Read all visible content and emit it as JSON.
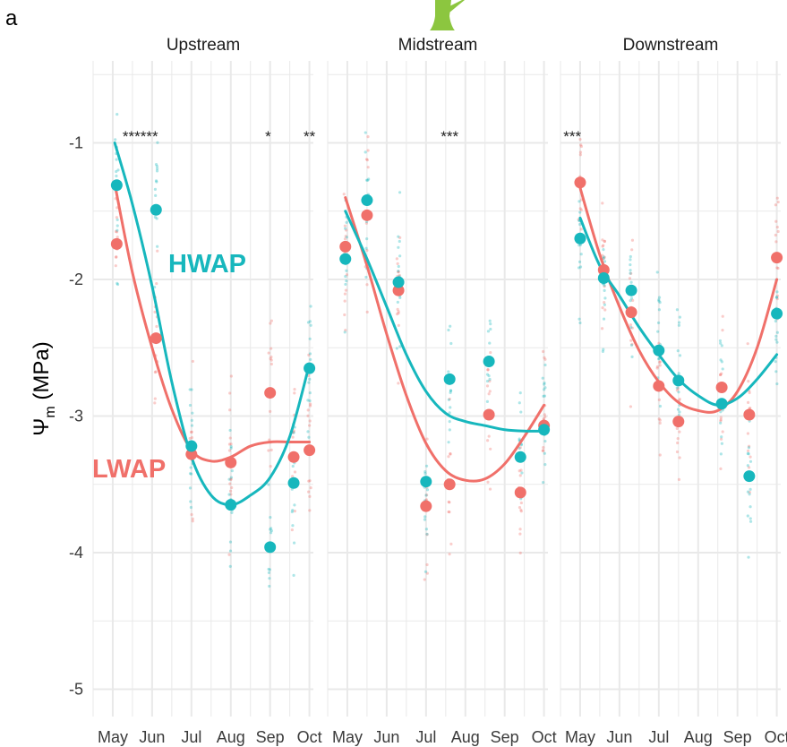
{
  "panel_label": "a",
  "y_axis_label": "Ψm (MPa)",
  "y_axis_label_main": "Ψ",
  "y_axis_label_sub": "m",
  "y_axis_label_unit": " (MPa)",
  "colors": {
    "HWAP": "#17b7bd",
    "LWAP": "#f0706a",
    "grid": "#e9e9e9",
    "text": "#3b3b3b",
    "icon": "#8cc63f"
  },
  "chart_data": {
    "type": "scatter",
    "ylim": [
      -5.2,
      -0.4
    ],
    "yticks": [
      -1,
      -2,
      -3,
      -4,
      -5
    ],
    "ytick_labels": [
      "-1",
      "-2",
      "-3",
      "-4",
      "-5"
    ],
    "xlim": [
      4.5,
      10.1
    ],
    "xticks": [
      5,
      6,
      7,
      8,
      9,
      10
    ],
    "xtick_labels": [
      "May",
      "Jun",
      "Jul",
      "Aug",
      "Sep",
      "Oct"
    ],
    "grid": true,
    "legend": "inline labels in Upstream panel",
    "series_labels": {
      "HWAP": "HWAP",
      "LWAP": "LWAP"
    },
    "panels": [
      {
        "title": "Upstream",
        "annotations": [
          {
            "x": 5.7,
            "text": "******"
          },
          {
            "x": 8.95,
            "text": "*"
          },
          {
            "x": 10.0,
            "text": "**"
          }
        ],
        "HWAP": {
          "means": [
            [
              5.1,
              -1.31
            ],
            [
              6.1,
              -1.49
            ],
            [
              7.0,
              -3.22
            ],
            [
              8.0,
              -3.65
            ],
            [
              9.0,
              -3.96
            ],
            [
              9.6,
              -3.49
            ],
            [
              10.0,
              -2.65
            ]
          ],
          "smooth": [
            [
              5.05,
              -1.0
            ],
            [
              5.5,
              -1.45
            ],
            [
              6.0,
              -2.05
            ],
            [
              6.5,
              -2.75
            ],
            [
              7.0,
              -3.3
            ],
            [
              7.5,
              -3.58
            ],
            [
              8.0,
              -3.65
            ],
            [
              8.5,
              -3.58
            ],
            [
              9.0,
              -3.45
            ],
            [
              9.5,
              -3.15
            ],
            [
              10.0,
              -2.62
            ]
          ]
        },
        "LWAP": {
          "means": [
            [
              5.1,
              -1.74
            ],
            [
              6.1,
              -2.43
            ],
            [
              7.0,
              -3.28
            ],
            [
              8.0,
              -3.34
            ],
            [
              9.0,
              -2.83
            ],
            [
              9.6,
              -3.3
            ],
            [
              10.0,
              -3.25
            ]
          ],
          "smooth": [
            [
              5.05,
              -1.3
            ],
            [
              5.5,
              -1.95
            ],
            [
              6.0,
              -2.5
            ],
            [
              6.5,
              -2.95
            ],
            [
              7.0,
              -3.25
            ],
            [
              7.5,
              -3.33
            ],
            [
              8.0,
              -3.3
            ],
            [
              8.5,
              -3.22
            ],
            [
              9.0,
              -3.19
            ],
            [
              9.5,
              -3.19
            ],
            [
              10.0,
              -3.19
            ]
          ]
        }
      },
      {
        "title": "Midstream",
        "annotations": [
          {
            "x": 7.6,
            "text": "***"
          }
        ],
        "HWAP": {
          "means": [
            [
              4.95,
              -1.85
            ],
            [
              5.5,
              -1.42
            ],
            [
              6.3,
              -2.02
            ],
            [
              7.0,
              -3.48
            ],
            [
              7.6,
              -2.73
            ],
            [
              8.6,
              -2.6
            ],
            [
              9.4,
              -3.3
            ],
            [
              10.0,
              -3.1
            ]
          ],
          "smooth": [
            [
              4.95,
              -1.5
            ],
            [
              5.5,
              -1.85
            ],
            [
              6.0,
              -2.2
            ],
            [
              6.5,
              -2.55
            ],
            [
              7.0,
              -2.82
            ],
            [
              7.5,
              -2.98
            ],
            [
              8.0,
              -3.04
            ],
            [
              8.5,
              -3.07
            ],
            [
              9.0,
              -3.1
            ],
            [
              9.5,
              -3.11
            ],
            [
              10.0,
              -3.11
            ]
          ]
        },
        "LWAP": {
          "means": [
            [
              4.95,
              -1.76
            ],
            [
              5.5,
              -1.53
            ],
            [
              6.3,
              -2.08
            ],
            [
              7.0,
              -3.66
            ],
            [
              7.6,
              -3.5
            ],
            [
              8.6,
              -2.99
            ],
            [
              9.4,
              -3.56
            ],
            [
              10.0,
              -3.07
            ]
          ],
          "smooth": [
            [
              4.95,
              -1.4
            ],
            [
              5.5,
              -1.9
            ],
            [
              6.0,
              -2.4
            ],
            [
              6.5,
              -2.85
            ],
            [
              7.0,
              -3.2
            ],
            [
              7.5,
              -3.4
            ],
            [
              8.0,
              -3.47
            ],
            [
              8.5,
              -3.46
            ],
            [
              9.0,
              -3.35
            ],
            [
              9.5,
              -3.15
            ],
            [
              10.0,
              -2.92
            ]
          ]
        }
      },
      {
        "title": "Downstream",
        "annotations": [
          {
            "x": 4.8,
            "text": "***"
          }
        ],
        "HWAP": {
          "means": [
            [
              5.0,
              -1.7
            ],
            [
              5.6,
              -1.99
            ],
            [
              6.3,
              -2.08
            ],
            [
              7.0,
              -2.52
            ],
            [
              7.5,
              -2.74
            ],
            [
              8.6,
              -2.91
            ],
            [
              9.3,
              -3.44
            ],
            [
              10.0,
              -2.25
            ]
          ],
          "smooth": [
            [
              5.0,
              -1.55
            ],
            [
              5.5,
              -1.9
            ],
            [
              6.0,
              -2.12
            ],
            [
              6.5,
              -2.35
            ],
            [
              7.0,
              -2.55
            ],
            [
              7.5,
              -2.73
            ],
            [
              8.0,
              -2.85
            ],
            [
              8.5,
              -2.92
            ],
            [
              9.0,
              -2.87
            ],
            [
              9.5,
              -2.73
            ],
            [
              10.0,
              -2.55
            ]
          ]
        },
        "LWAP": {
          "means": [
            [
              5.0,
              -1.29
            ],
            [
              5.6,
              -1.93
            ],
            [
              6.3,
              -2.24
            ],
            [
              7.0,
              -2.78
            ],
            [
              7.5,
              -3.04
            ],
            [
              8.6,
              -2.79
            ],
            [
              9.3,
              -2.99
            ],
            [
              10.0,
              -1.84
            ]
          ],
          "smooth": [
            [
              5.0,
              -1.33
            ],
            [
              5.5,
              -1.82
            ],
            [
              6.0,
              -2.2
            ],
            [
              6.5,
              -2.52
            ],
            [
              7.0,
              -2.75
            ],
            [
              7.5,
              -2.9
            ],
            [
              8.0,
              -2.96
            ],
            [
              8.5,
              -2.96
            ],
            [
              9.0,
              -2.82
            ],
            [
              9.5,
              -2.5
            ],
            [
              10.0,
              -2.0
            ]
          ]
        }
      }
    ]
  }
}
